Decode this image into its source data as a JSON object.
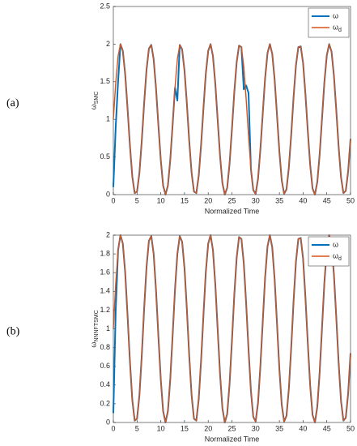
{
  "chart_data": [
    {
      "type": "line",
      "panel_label": "(a)",
      "xlabel": "Normalized Time",
      "ylabel": "ωSMC",
      "xlim": [
        0,
        50
      ],
      "xticks": [
        0,
        5,
        10,
        15,
        20,
        25,
        30,
        35,
        40,
        45,
        50
      ],
      "ylim": [
        0,
        2.5
      ],
      "yticks": [
        0,
        0.5,
        1,
        1.5,
        2,
        2.5
      ],
      "grid": false,
      "legend": "upper right",
      "x": [
        0,
        0.5,
        1,
        1.5,
        2,
        2.5,
        3,
        3.5,
        4,
        4.5,
        5,
        5.5,
        6,
        6.5,
        7,
        7.5,
        8,
        8.5,
        9,
        9.5,
        10,
        10.5,
        11,
        11.5,
        12,
        12.5,
        13,
        13.5,
        14,
        14.5,
        15,
        15.5,
        16,
        16.5,
        17,
        17.5,
        18,
        18.5,
        19,
        19.5,
        20,
        20.5,
        21,
        21.5,
        22,
        22.5,
        23,
        23.5,
        24,
        24.5,
        25,
        25.5,
        26,
        26.5,
        27,
        27.5,
        28,
        28.5,
        29,
        29.5,
        30,
        30.5,
        31,
        31.5,
        32,
        32.5,
        33,
        33.5,
        34,
        34.5,
        35,
        35.5,
        36,
        36.5,
        37,
        37.5,
        38,
        38.5,
        39,
        39.5,
        40,
        40.5,
        41,
        41.5,
        42,
        42.5,
        43,
        43.5,
        44,
        44.5,
        45,
        45.5,
        46,
        46.5,
        47,
        47.5,
        48,
        48.5,
        49,
        49.5,
        50
      ],
      "series": [
        {
          "name": "ω",
          "color": "#0072bd",
          "values": [
            0.1,
            0.9,
            1.5,
            2,
            1.91,
            1.6,
            1.14,
            0.65,
            0.24,
            0.02,
            0.04,
            0.29,
            0.72,
            1.22,
            1.66,
            1.94,
            1.99,
            1.8,
            1.41,
            0.92,
            0.46,
            0.12,
            0,
            0.12,
            0.46,
            0.93,
            1.42,
            1.25,
            1.99,
            1.93,
            1.65,
            1.21,
            0.71,
            0.29,
            0.04,
            0.02,
            0.25,
            0.66,
            1.15,
            1.61,
            1.91,
            2,
            1.84,
            1.47,
            0.99,
            0.51,
            0.15,
            0,
            0.09,
            0.41,
            0.87,
            1.36,
            1.76,
            1.98,
            1.96,
            1.4,
            1.45,
            1.35,
            0.34,
            0.06,
            0.01,
            0.21,
            0.6,
            1.08,
            1.55,
            1.88,
            2,
            1.87,
            1.53,
            1.06,
            0.57,
            0.19,
            0.01,
            0.07,
            0.36,
            0.8,
            1.3,
            1.72,
            1.96,
            1.97,
            1.75,
            1.33,
            0.84,
            0.39,
            0.08,
            0,
            0.17,
            0.54,
            1.02,
            1.5,
            1.85,
            2,
            1.9,
            1.58,
            1.12,
            0.63,
            0.23,
            0.02,
            0.05,
            0.31,
            0.74
          ]
        },
        {
          "name": "ωd",
          "color": "#d95319",
          "values": [
            1,
            1.48,
            1.84,
            2,
            1.91,
            1.6,
            1.14,
            0.65,
            0.24,
            0.02,
            0.04,
            0.29,
            0.72,
            1.22,
            1.66,
            1.94,
            1.99,
            1.8,
            1.41,
            0.92,
            0.46,
            0.12,
            0,
            0.12,
            0.46,
            0.93,
            1.42,
            1.8,
            1.99,
            1.93,
            1.65,
            1.21,
            0.71,
            0.29,
            0.04,
            0.02,
            0.25,
            0.66,
            1.15,
            1.61,
            1.91,
            2,
            1.84,
            1.47,
            0.99,
            0.51,
            0.15,
            0,
            0.09,
            0.41,
            0.87,
            1.36,
            1.76,
            1.98,
            1.96,
            1.7,
            1.27,
            0.78,
            0.34,
            0.06,
            0.01,
            0.21,
            0.6,
            1.08,
            1.55,
            1.88,
            2,
            1.87,
            1.53,
            1.06,
            0.57,
            0.19,
            0.01,
            0.07,
            0.36,
            0.8,
            1.3,
            1.72,
            1.96,
            1.97,
            1.75,
            1.33,
            0.84,
            0.39,
            0.08,
            0,
            0.17,
            0.54,
            1.02,
            1.5,
            1.85,
            2,
            1.9,
            1.58,
            1.12,
            0.63,
            0.23,
            0.02,
            0.05,
            0.31,
            0.74
          ]
        }
      ]
    },
    {
      "type": "line",
      "panel_label": "(b)",
      "xlabel": "Normalized Time",
      "ylabel": "ωNNNFTSMC",
      "xlim": [
        0,
        50
      ],
      "xticks": [
        0,
        5,
        10,
        15,
        20,
        25,
        30,
        35,
        40,
        45,
        50
      ],
      "ylim": [
        0,
        2
      ],
      "yticks": [
        0,
        0.2,
        0.4,
        0.6,
        0.8,
        1,
        1.2,
        1.4,
        1.6,
        1.8,
        2
      ],
      "grid": false,
      "legend": "upper right",
      "x": [
        0,
        0.5,
        1,
        1.5,
        2,
        2.5,
        3,
        3.5,
        4,
        4.5,
        5,
        5.5,
        6,
        6.5,
        7,
        7.5,
        8,
        8.5,
        9,
        9.5,
        10,
        10.5,
        11,
        11.5,
        12,
        12.5,
        13,
        13.5,
        14,
        14.5,
        15,
        15.5,
        16,
        16.5,
        17,
        17.5,
        18,
        18.5,
        19,
        19.5,
        20,
        20.5,
        21,
        21.5,
        22,
        22.5,
        23,
        23.5,
        24,
        24.5,
        25,
        25.5,
        26,
        26.5,
        27,
        27.5,
        28,
        28.5,
        29,
        29.5,
        30,
        30.5,
        31,
        31.5,
        32,
        32.5,
        33,
        33.5,
        34,
        34.5,
        35,
        35.5,
        36,
        36.5,
        37,
        37.5,
        38,
        38.5,
        39,
        39.5,
        40,
        40.5,
        41,
        41.5,
        42,
        42.5,
        43,
        43.5,
        44,
        44.5,
        45,
        45.5,
        46,
        46.5,
        47,
        47.5,
        48,
        48.5,
        49,
        49.5,
        50
      ],
      "series": [
        {
          "name": "ω",
          "color": "#0072bd",
          "values": [
            0.1,
            1.2,
            1.84,
            2,
            1.91,
            1.6,
            1.14,
            0.65,
            0.24,
            0.02,
            0.04,
            0.29,
            0.72,
            1.22,
            1.66,
            1.94,
            1.99,
            1.8,
            1.41,
            0.92,
            0.46,
            0.12,
            0,
            0.12,
            0.46,
            0.93,
            1.42,
            1.8,
            1.99,
            1.93,
            1.65,
            1.21,
            0.71,
            0.29,
            0.04,
            0.02,
            0.25,
            0.66,
            1.15,
            1.61,
            1.91,
            2,
            1.84,
            1.47,
            0.99,
            0.51,
            0.15,
            0,
            0.09,
            0.41,
            0.87,
            1.36,
            1.76,
            1.98,
            1.96,
            1.7,
            1.27,
            0.78,
            0.34,
            0.06,
            0.01,
            0.21,
            0.6,
            1.08,
            1.55,
            1.88,
            2,
            1.87,
            1.53,
            1.06,
            0.57,
            0.19,
            0.01,
            0.07,
            0.36,
            0.8,
            1.3,
            1.72,
            1.96,
            1.97,
            1.75,
            1.33,
            0.84,
            0.39,
            0.08,
            0,
            0.17,
            0.54,
            1.02,
            1.5,
            1.85,
            2,
            1.9,
            1.58,
            1.12,
            0.63,
            0.23,
            0.02,
            0.05,
            0.31,
            0.74
          ]
        },
        {
          "name": "ωd",
          "color": "#d95319",
          "values": [
            1,
            1.48,
            1.84,
            2,
            1.91,
            1.6,
            1.14,
            0.65,
            0.24,
            0.02,
            0.04,
            0.29,
            0.72,
            1.22,
            1.66,
            1.94,
            1.99,
            1.8,
            1.41,
            0.92,
            0.46,
            0.12,
            0,
            0.12,
            0.46,
            0.93,
            1.42,
            1.8,
            1.99,
            1.93,
            1.65,
            1.21,
            0.71,
            0.29,
            0.04,
            0.02,
            0.25,
            0.66,
            1.15,
            1.61,
            1.91,
            2,
            1.84,
            1.47,
            0.99,
            0.51,
            0.15,
            0,
            0.09,
            0.41,
            0.87,
            1.36,
            1.76,
            1.98,
            1.96,
            1.7,
            1.27,
            0.78,
            0.34,
            0.06,
            0.01,
            0.21,
            0.6,
            1.08,
            1.55,
            1.88,
            2,
            1.87,
            1.53,
            1.06,
            0.57,
            0.19,
            0.01,
            0.07,
            0.36,
            0.8,
            1.3,
            1.72,
            1.96,
            1.97,
            1.75,
            1.33,
            0.84,
            0.39,
            0.08,
            0,
            0.17,
            0.54,
            1.02,
            1.5,
            1.85,
            2,
            1.9,
            1.58,
            1.12,
            0.63,
            0.23,
            0.02,
            0.05,
            0.31,
            0.74
          ]
        }
      ]
    }
  ]
}
